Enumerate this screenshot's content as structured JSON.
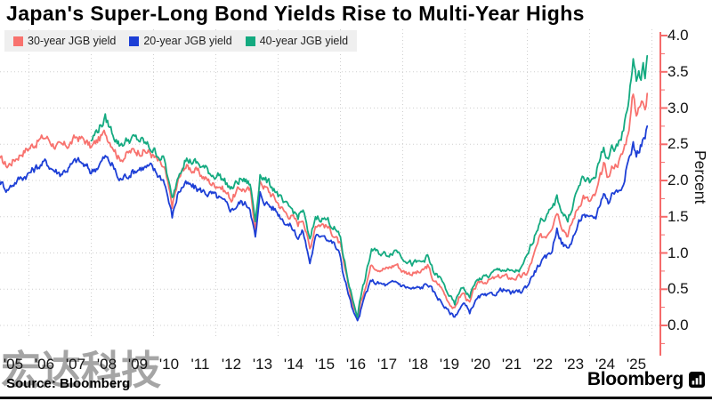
{
  "title": "Japan's Super-Long Bond Yields Rise to Multi-Year Highs",
  "source": "Source: Bloomberg",
  "brand": "Bloomberg",
  "brand_icon": "bloomberg-bars-logo",
  "watermark": "宏达科技",
  "colors": {
    "yield_30y": "#f8726e",
    "yield_20y": "#1d3fd6",
    "yield_40y": "#14aa80",
    "axis": "#f56a6a",
    "grid": "#cfcfcf",
    "legend_bg": "#efefef",
    "text": "#131313"
  },
  "legend": {
    "items": [
      {
        "label": "30-year JGB yield",
        "color": "#f8726e"
      },
      {
        "label": "20-year JGB yield",
        "color": "#1d3fd6"
      },
      {
        "label": "40-year JGB yield",
        "color": "#14aa80"
      }
    ]
  },
  "chart_data": {
    "type": "line",
    "title": "Japan's Super-Long Bond Yields Rise to Multi-Year Highs",
    "xlabel": "",
    "ylabel": "Percent",
    "ylim": [
      0.0,
      4.0
    ],
    "ytick_step": 0.5,
    "ytick_labels": [
      "0.0",
      "0.5",
      "1.0",
      "1.5",
      "2.0",
      "2.5",
      "3.0",
      "3.5",
      "4.0"
    ],
    "xtick_years": [
      2005,
      2006,
      2007,
      2008,
      2009,
      2010,
      2011,
      2012,
      2013,
      2014,
      2015,
      2016,
      2017,
      2018,
      2019,
      2020,
      2021,
      2022,
      2023,
      2024,
      2025
    ],
    "xtick_labels": [
      "'05",
      "'06",
      "'07",
      "'08",
      "'09",
      "'10",
      "'11",
      "'12",
      "'13",
      "'14",
      "'15",
      "'16",
      "'17",
      "'18",
      "'19",
      "'20",
      "'21",
      "'22",
      "'23",
      "'24",
      "'25"
    ],
    "vgrid_years": [
      2006,
      2008,
      2010,
      2012,
      2014,
      2016,
      2018,
      2020,
      2022,
      2024,
      2026
    ],
    "grid": true,
    "legend_position": "top-left",
    "axis_side": "right",
    "x_range": [
      2005.05,
      2025.85
    ],
    "series": [
      {
        "name": "30-year JGB yield",
        "color": "#f8726e",
        "points": [
          [
            2005.05,
            2.3
          ],
          [
            2005.3,
            2.2
          ],
          [
            2005.55,
            2.3
          ],
          [
            2005.8,
            2.4
          ],
          [
            2006.0,
            2.45
          ],
          [
            2006.3,
            2.55
          ],
          [
            2006.55,
            2.6
          ],
          [
            2006.8,
            2.5
          ],
          [
            2007.0,
            2.45
          ],
          [
            2007.3,
            2.5
          ],
          [
            2007.55,
            2.6
          ],
          [
            2007.8,
            2.55
          ],
          [
            2008.0,
            2.45
          ],
          [
            2008.2,
            2.55
          ],
          [
            2008.45,
            2.65
          ],
          [
            2008.7,
            2.5
          ],
          [
            2008.9,
            2.3
          ],
          [
            2009.3,
            2.4
          ],
          [
            2009.6,
            2.42
          ],
          [
            2009.9,
            2.38
          ],
          [
            2010.1,
            2.28
          ],
          [
            2010.35,
            2.15
          ],
          [
            2010.6,
            1.65
          ],
          [
            2010.8,
            2.0
          ],
          [
            2011.0,
            2.2
          ],
          [
            2011.3,
            2.15
          ],
          [
            2011.6,
            2.05
          ],
          [
            2011.9,
            1.95
          ],
          [
            2012.1,
            1.95
          ],
          [
            2012.5,
            1.75
          ],
          [
            2012.8,
            1.9
          ],
          [
            2013.1,
            1.85
          ],
          [
            2013.27,
            1.35
          ],
          [
            2013.42,
            2.0
          ],
          [
            2013.6,
            1.9
          ],
          [
            2013.9,
            1.75
          ],
          [
            2014.2,
            1.57
          ],
          [
            2014.45,
            1.5
          ],
          [
            2014.64,
            1.4
          ],
          [
            2014.8,
            1.5
          ],
          [
            2015.02,
            1.05
          ],
          [
            2015.2,
            1.4
          ],
          [
            2015.45,
            1.4
          ],
          [
            2015.6,
            1.35
          ],
          [
            2015.8,
            1.25
          ],
          [
            2016.0,
            1.1
          ],
          [
            2016.1,
            0.85
          ],
          [
            2016.25,
            0.55
          ],
          [
            2016.4,
            0.3
          ],
          [
            2016.55,
            0.1
          ],
          [
            2016.65,
            0.3
          ],
          [
            2016.8,
            0.55
          ],
          [
            2017.0,
            0.85
          ],
          [
            2017.2,
            0.8
          ],
          [
            2017.5,
            0.78
          ],
          [
            2017.8,
            0.85
          ],
          [
            2018.0,
            0.75
          ],
          [
            2018.3,
            0.72
          ],
          [
            2018.6,
            0.73
          ],
          [
            2018.8,
            0.82
          ],
          [
            2019.0,
            0.6
          ],
          [
            2019.2,
            0.55
          ],
          [
            2019.45,
            0.35
          ],
          [
            2019.67,
            0.22
          ],
          [
            2019.8,
            0.38
          ],
          [
            2019.95,
            0.45
          ],
          [
            2020.15,
            0.3
          ],
          [
            2020.3,
            0.5
          ],
          [
            2020.5,
            0.6
          ],
          [
            2020.75,
            0.62
          ],
          [
            2021.0,
            0.65
          ],
          [
            2021.2,
            0.68
          ],
          [
            2021.5,
            0.65
          ],
          [
            2021.8,
            0.67
          ],
          [
            2022.0,
            0.72
          ],
          [
            2022.2,
            0.95
          ],
          [
            2022.4,
            1.2
          ],
          [
            2022.6,
            1.25
          ],
          [
            2022.8,
            1.4
          ],
          [
            2022.95,
            1.6
          ],
          [
            2023.1,
            1.4
          ],
          [
            2023.3,
            1.25
          ],
          [
            2023.55,
            1.55
          ],
          [
            2023.8,
            1.8
          ],
          [
            2024.0,
            1.7
          ],
          [
            2024.2,
            1.8
          ],
          [
            2024.45,
            2.2
          ],
          [
            2024.6,
            2.05
          ],
          [
            2024.75,
            2.2
          ],
          [
            2024.9,
            2.25
          ],
          [
            2025.05,
            2.35
          ],
          [
            2025.2,
            2.6
          ],
          [
            2025.3,
            2.85
          ],
          [
            2025.4,
            3.2
          ],
          [
            2025.5,
            2.95
          ],
          [
            2025.6,
            3.0
          ],
          [
            2025.7,
            3.1
          ],
          [
            2025.78,
            3.05
          ],
          [
            2025.85,
            3.2
          ]
        ]
      },
      {
        "name": "20-year JGB yield",
        "color": "#1d3fd6",
        "points": [
          [
            2005.05,
            2.0
          ],
          [
            2005.3,
            1.88
          ],
          [
            2005.55,
            1.98
          ],
          [
            2005.8,
            2.05
          ],
          [
            2006.0,
            2.1
          ],
          [
            2006.3,
            2.2
          ],
          [
            2006.55,
            2.25
          ],
          [
            2006.8,
            2.15
          ],
          [
            2007.0,
            2.1
          ],
          [
            2007.3,
            2.18
          ],
          [
            2007.55,
            2.28
          ],
          [
            2007.8,
            2.2
          ],
          [
            2008.0,
            2.12
          ],
          [
            2008.2,
            2.2
          ],
          [
            2008.45,
            2.32
          ],
          [
            2008.7,
            2.2
          ],
          [
            2008.9,
            2.0
          ],
          [
            2009.3,
            2.12
          ],
          [
            2009.6,
            2.18
          ],
          [
            2009.9,
            2.18
          ],
          [
            2010.1,
            2.1
          ],
          [
            2010.35,
            2.0
          ],
          [
            2010.6,
            1.5
          ],
          [
            2010.8,
            1.85
          ],
          [
            2011.0,
            1.95
          ],
          [
            2011.3,
            1.9
          ],
          [
            2011.6,
            1.85
          ],
          [
            2011.9,
            1.8
          ],
          [
            2012.1,
            1.75
          ],
          [
            2012.5,
            1.6
          ],
          [
            2012.8,
            1.7
          ],
          [
            2013.1,
            1.65
          ],
          [
            2013.27,
            1.2
          ],
          [
            2013.42,
            1.8
          ],
          [
            2013.6,
            1.7
          ],
          [
            2013.9,
            1.6
          ],
          [
            2014.2,
            1.45
          ],
          [
            2014.45,
            1.35
          ],
          [
            2014.64,
            1.22
          ],
          [
            2014.8,
            1.3
          ],
          [
            2015.02,
            0.87
          ],
          [
            2015.2,
            1.2
          ],
          [
            2015.45,
            1.28
          ],
          [
            2015.6,
            1.2
          ],
          [
            2015.8,
            1.12
          ],
          [
            2016.0,
            0.95
          ],
          [
            2016.1,
            0.7
          ],
          [
            2016.25,
            0.45
          ],
          [
            2016.4,
            0.2
          ],
          [
            2016.55,
            0.04
          ],
          [
            2016.65,
            0.2
          ],
          [
            2016.8,
            0.42
          ],
          [
            2017.0,
            0.62
          ],
          [
            2017.2,
            0.58
          ],
          [
            2017.5,
            0.55
          ],
          [
            2017.8,
            0.6
          ],
          [
            2018.0,
            0.55
          ],
          [
            2018.3,
            0.5
          ],
          [
            2018.6,
            0.52
          ],
          [
            2018.8,
            0.58
          ],
          [
            2019.0,
            0.45
          ],
          [
            2019.2,
            0.35
          ],
          [
            2019.45,
            0.2
          ],
          [
            2019.67,
            0.12
          ],
          [
            2019.8,
            0.22
          ],
          [
            2019.95,
            0.3
          ],
          [
            2020.15,
            0.18
          ],
          [
            2020.3,
            0.32
          ],
          [
            2020.5,
            0.4
          ],
          [
            2020.75,
            0.4
          ],
          [
            2021.0,
            0.45
          ],
          [
            2021.2,
            0.5
          ],
          [
            2021.5,
            0.44
          ],
          [
            2021.8,
            0.47
          ],
          [
            2022.0,
            0.55
          ],
          [
            2022.2,
            0.72
          ],
          [
            2022.4,
            0.85
          ],
          [
            2022.6,
            0.92
          ],
          [
            2022.8,
            1.05
          ],
          [
            2022.95,
            1.35
          ],
          [
            2023.1,
            1.15
          ],
          [
            2023.3,
            1.05
          ],
          [
            2023.55,
            1.3
          ],
          [
            2023.8,
            1.55
          ],
          [
            2024.0,
            1.45
          ],
          [
            2024.2,
            1.5
          ],
          [
            2024.45,
            1.85
          ],
          [
            2024.6,
            1.7
          ],
          [
            2024.75,
            1.85
          ],
          [
            2024.9,
            1.85
          ],
          [
            2025.05,
            1.95
          ],
          [
            2025.2,
            2.2
          ],
          [
            2025.3,
            2.35
          ],
          [
            2025.4,
            2.5
          ],
          [
            2025.5,
            2.35
          ],
          [
            2025.6,
            2.45
          ],
          [
            2025.7,
            2.55
          ],
          [
            2025.78,
            2.6
          ],
          [
            2025.85,
            2.75
          ]
        ]
      },
      {
        "name": "40-year JGB yield",
        "color": "#14aa80",
        "points": [
          [
            2008.0,
            2.55
          ],
          [
            2008.2,
            2.7
          ],
          [
            2008.45,
            2.85
          ],
          [
            2008.7,
            2.65
          ],
          [
            2008.9,
            2.5
          ],
          [
            2009.3,
            2.58
          ],
          [
            2009.6,
            2.55
          ],
          [
            2009.9,
            2.45
          ],
          [
            2010.1,
            2.38
          ],
          [
            2010.35,
            2.28
          ],
          [
            2010.6,
            1.72
          ],
          [
            2010.8,
            2.1
          ],
          [
            2011.0,
            2.3
          ],
          [
            2011.3,
            2.25
          ],
          [
            2011.6,
            2.18
          ],
          [
            2011.9,
            2.08
          ],
          [
            2012.1,
            2.08
          ],
          [
            2012.5,
            1.88
          ],
          [
            2012.8,
            2.02
          ],
          [
            2013.1,
            1.95
          ],
          [
            2013.27,
            1.45
          ],
          [
            2013.42,
            2.1
          ],
          [
            2013.6,
            2.0
          ],
          [
            2013.9,
            1.88
          ],
          [
            2014.2,
            1.65
          ],
          [
            2014.45,
            1.6
          ],
          [
            2014.64,
            1.5
          ],
          [
            2014.8,
            1.6
          ],
          [
            2015.02,
            1.15
          ],
          [
            2015.2,
            1.5
          ],
          [
            2015.45,
            1.48
          ],
          [
            2015.6,
            1.45
          ],
          [
            2015.8,
            1.35
          ],
          [
            2016.0,
            1.2
          ],
          [
            2016.1,
            0.95
          ],
          [
            2016.25,
            0.62
          ],
          [
            2016.4,
            0.35
          ],
          [
            2016.55,
            0.14
          ],
          [
            2016.65,
            0.4
          ],
          [
            2016.8,
            0.65
          ],
          [
            2017.0,
            1.05
          ],
          [
            2017.2,
            1.0
          ],
          [
            2017.5,
            0.98
          ],
          [
            2017.8,
            1.05
          ],
          [
            2018.0,
            0.95
          ],
          [
            2018.3,
            0.85
          ],
          [
            2018.6,
            0.87
          ],
          [
            2018.8,
            0.95
          ],
          [
            2019.0,
            0.72
          ],
          [
            2019.2,
            0.65
          ],
          [
            2019.45,
            0.45
          ],
          [
            2019.67,
            0.28
          ],
          [
            2019.8,
            0.45
          ],
          [
            2019.95,
            0.52
          ],
          [
            2020.15,
            0.4
          ],
          [
            2020.3,
            0.58
          ],
          [
            2020.5,
            0.65
          ],
          [
            2020.75,
            0.68
          ],
          [
            2021.0,
            0.75
          ],
          [
            2021.2,
            0.78
          ],
          [
            2021.5,
            0.73
          ],
          [
            2021.8,
            0.77
          ],
          [
            2022.0,
            0.95
          ],
          [
            2022.2,
            1.2
          ],
          [
            2022.4,
            1.45
          ],
          [
            2022.6,
            1.5
          ],
          [
            2022.8,
            1.6
          ],
          [
            2022.95,
            1.75
          ],
          [
            2023.1,
            1.6
          ],
          [
            2023.3,
            1.45
          ],
          [
            2023.55,
            1.8
          ],
          [
            2023.8,
            2.05
          ],
          [
            2024.0,
            1.95
          ],
          [
            2024.2,
            2.1
          ],
          [
            2024.45,
            2.45
          ],
          [
            2024.6,
            2.3
          ],
          [
            2024.75,
            2.45
          ],
          [
            2024.9,
            2.5
          ],
          [
            2025.05,
            2.65
          ],
          [
            2025.2,
            2.95
          ],
          [
            2025.3,
            3.3
          ],
          [
            2025.4,
            3.7
          ],
          [
            2025.5,
            3.38
          ],
          [
            2025.58,
            3.5
          ],
          [
            2025.65,
            3.4
          ],
          [
            2025.72,
            3.55
          ],
          [
            2025.78,
            3.45
          ],
          [
            2025.85,
            3.72
          ]
        ]
      }
    ]
  }
}
